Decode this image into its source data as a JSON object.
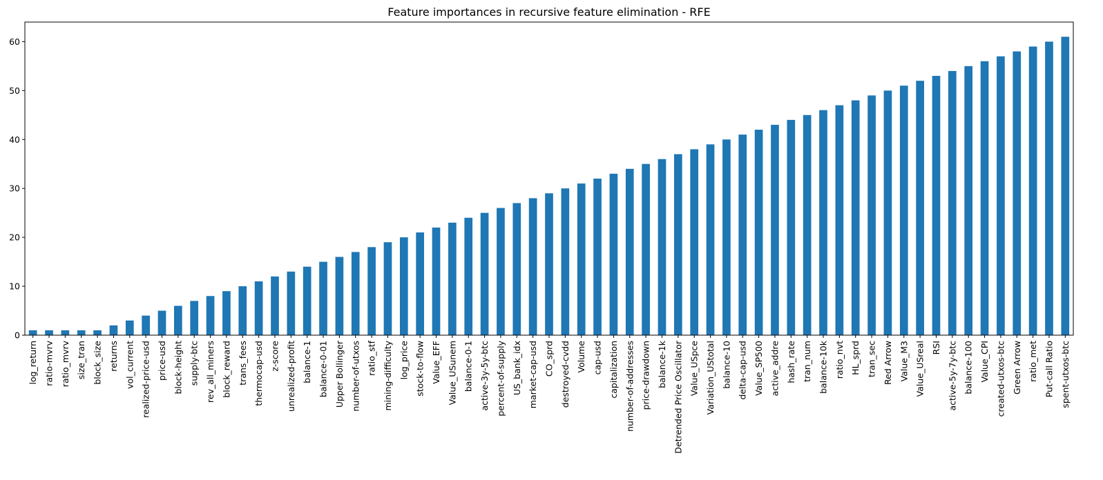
{
  "chart_data": {
    "type": "bar",
    "title": "Feature importances in recursive feature elimination - RFE",
    "xlabel": "",
    "ylabel": "",
    "ylim": [
      0,
      64
    ],
    "yticks": [
      0,
      10,
      20,
      30,
      40,
      50,
      60
    ],
    "grid": false,
    "legend": "none",
    "bar_color": "#1f77b4",
    "categories": [
      "log_return",
      "ratio-mvrv",
      "ratio_mvrv",
      "size_tran",
      "block_size",
      "returns",
      "vol_current",
      "realized-price-usd",
      "price-usd",
      "block-height",
      "supply-btc",
      "rev_all_miners",
      "block_reward",
      "trans_fees",
      "thermocap-usd",
      "z-score",
      "unrealized-profit",
      "balance-1",
      "balance-0-01",
      "Upper Bollinger",
      "number-of-utxos",
      "ratio_stf",
      "mining-difficulty",
      "log_price",
      "stock-to-flow",
      "Value_EFF",
      "Value_USunem",
      "balance-0-1",
      "active-3y-5y-btc",
      "percent-of-supply",
      "US_bank_idx",
      "market-cap-usd",
      "CO_sprd",
      "destroyed-cvdd",
      "Volume",
      "cap-usd",
      "capitalization",
      "number-of-addresses",
      "price-drawdown",
      "balance-1k",
      "Detrended Price Oscillator",
      "Value_USpce",
      "Variation_UStotal",
      "balance-10",
      "delta-cap-usd",
      "Value_SP500",
      "active_addre",
      "hash_rate",
      "tran_num",
      "balance-10k",
      "ratio_nvt",
      "HL_sprd",
      "tran_sec",
      "Red Arrow",
      "Value_M3",
      "Value_USreal",
      "RSI",
      "active-5y-7y-btc",
      "balance-100",
      "Value_CPI",
      "created-utxos-btc",
      "Green Arrow",
      "ratio_met",
      "Put-call Ratio",
      "spent-utxos-btc"
    ],
    "values": [
      1,
      1,
      1,
      1,
      1,
      2,
      3,
      4,
      5,
      6,
      7,
      8,
      9,
      10,
      11,
      12,
      13,
      14,
      15,
      16,
      17,
      18,
      19,
      20,
      21,
      22,
      23,
      24,
      25,
      26,
      27,
      28,
      29,
      30,
      31,
      32,
      33,
      34,
      35,
      36,
      37,
      38,
      39,
      40,
      41,
      42,
      43,
      44,
      45,
      46,
      47,
      48,
      49,
      50,
      51,
      52,
      53,
      54,
      55,
      56,
      57,
      58,
      59,
      60,
      61
    ]
  }
}
